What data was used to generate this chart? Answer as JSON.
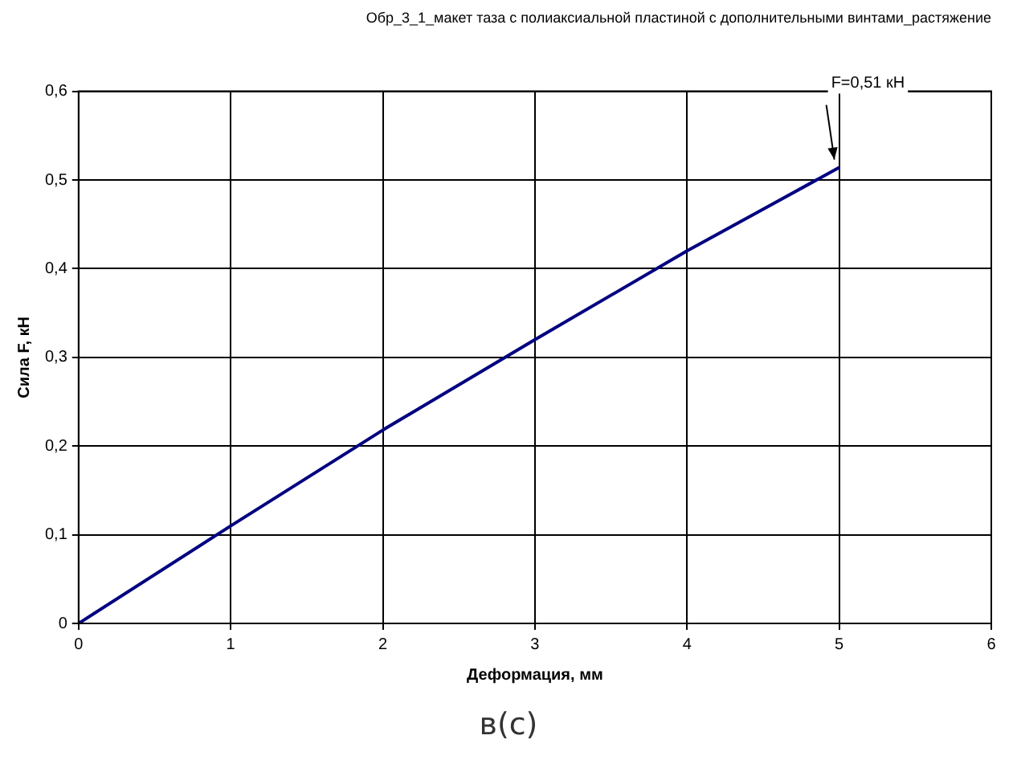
{
  "chart_data": {
    "type": "line",
    "title": "Обр_3_1_макет таза с полиаксиальной пластиной с дополнительными винтами_растяжение",
    "xlabel": "Деформация, мм",
    "ylabel": "Сила F, кН",
    "x": [
      0,
      1,
      2,
      3,
      4,
      5
    ],
    "series": [
      {
        "color": "#000080",
        "values": [
          0,
          0.11,
          0.218,
          0.32,
          0.42,
          0.514
        ]
      }
    ],
    "xlim": [
      0,
      6
    ],
    "xticks": [
      0,
      1,
      2,
      3,
      4,
      5,
      6
    ],
    "ylim": [
      0,
      0.6
    ],
    "yticks": [
      0,
      {
        "value": 0.1,
        "label": "0,1"
      },
      {
        "value": 0.2,
        "label": "0,2"
      },
      {
        "value": 0.3,
        "label": "0,3"
      },
      {
        "value": 0.4,
        "label": "0,4"
      },
      {
        "value": 0.5,
        "label": "0,5"
      },
      {
        "value": 0.6,
        "label": "0,6"
      }
    ],
    "grid": true,
    "legend": false,
    "marker": "none",
    "line_style": "solid",
    "annotations": [
      {
        "text": "F=0,51 кН",
        "x": 5,
        "y": 0.514
      },
      "в(с)"
    ]
  }
}
